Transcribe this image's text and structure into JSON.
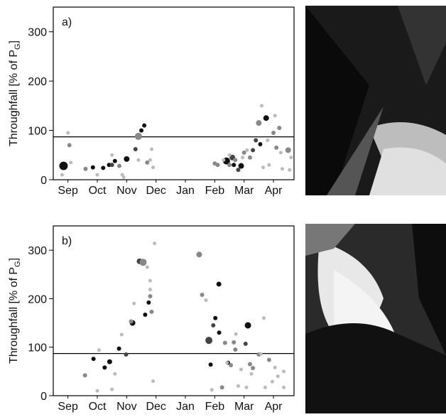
{
  "chart_data": [
    {
      "type": "scatter",
      "panel_label": "a)",
      "ylabel": [
        "Throughfall [% of P",
        "G",
        "]"
      ],
      "xlim": [
        -0.5,
        7.7
      ],
      "xticks": [
        {
          "value": 0,
          "label": "Sep"
        },
        {
          "value": 1,
          "label": "Oct"
        },
        {
          "value": 2,
          "label": "Nov"
        },
        {
          "value": 3,
          "label": "Dec"
        },
        {
          "value": 4,
          "label": "Jan"
        },
        {
          "value": 5,
          "label": "Feb"
        },
        {
          "value": 6,
          "label": "Mar"
        },
        {
          "value": 7,
          "label": "Apr"
        }
      ],
      "ylim": [
        0,
        350
      ],
      "yticks": [
        0,
        100,
        200,
        300
      ],
      "hline": 87,
      "series": [
        {
          "color": "#111111",
          "x": [
            -0.15,
            0.85,
            1.2,
            1.4,
            1.6,
            2.0,
            2.5,
            2.6,
            5.4,
            5.65,
            5.9,
            6.55,
            6.75
          ],
          "values": [
            28,
            25,
            24,
            30,
            38,
            42,
            100,
            110,
            38,
            30,
            28,
            72,
            125
          ],
          "sizes": [
            6,
            3,
            3,
            3,
            3,
            4,
            3,
            3,
            5,
            3,
            4,
            3,
            4
          ]
        },
        {
          "color": "#444444",
          "x": [
            1.5,
            2.3,
            5.6,
            5.8,
            6.3,
            6.4
          ],
          "values": [
            30,
            62,
            45,
            20,
            60,
            80
          ],
          "sizes": [
            3,
            3,
            4,
            3,
            3,
            3
          ]
        },
        {
          "color": "#888888",
          "x": [
            0.05,
            0.6,
            1.75,
            2.4,
            2.7,
            5.0,
            5.1,
            5.5,
            5.7,
            6.0,
            6.2,
            6.5,
            7.0,
            7.1,
            7.2,
            7.5
          ],
          "values": [
            70,
            22,
            28,
            88,
            35,
            33,
            30,
            30,
            40,
            55,
            45,
            115,
            95,
            65,
            105,
            60
          ],
          "sizes": [
            3,
            3,
            3,
            5,
            3,
            3,
            3,
            3,
            3,
            3,
            3,
            4,
            3,
            3,
            3,
            4
          ]
        },
        {
          "color": "#bbbbbb",
          "x": [
            -0.2,
            0.0,
            0.1,
            1.0,
            1.5,
            1.85,
            1.9,
            2.4,
            2.8,
            2.9,
            2.85,
            5.3,
            5.5,
            5.95,
            6.1,
            6.6,
            6.65,
            6.8,
            6.85,
            7.05,
            7.25,
            7.3,
            7.55,
            7.6
          ],
          "values": [
            10,
            95,
            35,
            10,
            50,
            10,
            5,
            40,
            40,
            25,
            62,
            40,
            50,
            45,
            60,
            150,
            25,
            80,
            30,
            130,
            55,
            22,
            20,
            45
          ],
          "sizes": [
            2.5,
            2.5,
            2.5,
            2.5,
            2.5,
            2.5,
            2.5,
            2.5,
            2.5,
            2.5,
            2.5,
            2.5,
            2.5,
            2.5,
            2.5,
            2.5,
            2.5,
            2.5,
            2.5,
            2.5,
            2.5,
            2.5,
            2.5,
            2.5
          ]
        }
      ]
    },
    {
      "type": "scatter",
      "panel_label": "b)",
      "ylabel": [
        "Throughfall [% of P",
        "G",
        "]"
      ],
      "xlim": [
        -0.5,
        7.7
      ],
      "xticks": [
        {
          "value": 0,
          "label": "Sep"
        },
        {
          "value": 1,
          "label": "Oct"
        },
        {
          "value": 2,
          "label": "Nov"
        },
        {
          "value": 3,
          "label": "Dec"
        },
        {
          "value": 4,
          "label": "Jan"
        },
        {
          "value": 5,
          "label": "Feb"
        },
        {
          "value": 6,
          "label": "Mar"
        },
        {
          "value": 7,
          "label": "Apr"
        }
      ],
      "ylim": [
        0,
        350
      ],
      "yticks": [
        0,
        100,
        200,
        300
      ],
      "hline": 87,
      "series": [
        {
          "color": "#111111",
          "x": [
            0.87,
            1.25,
            1.42,
            1.74,
            2.2,
            2.63,
            2.75,
            4.86,
            5.02,
            5.14,
            5.15,
            5.45,
            6.13
          ],
          "values": [
            76,
            58,
            70,
            97,
            150,
            167,
            192,
            64,
            160,
            230,
            130,
            68,
            145
          ],
          "sizes": [
            3,
            3,
            3.5,
            3,
            4,
            3,
            3,
            3,
            3,
            3.5,
            3,
            3,
            4.5
          ]
        },
        {
          "color": "#444444",
          "x": [
            1.98,
            2.44,
            4.8,
            4.95,
            6.05
          ],
          "values": [
            85,
            277,
            114,
            145,
            107
          ],
          "sizes": [
            3,
            4,
            5,
            3,
            3
          ]
        },
        {
          "color": "#888888",
          "x": [
            0.58,
            2.15,
            2.56,
            2.8,
            2.85,
            4.47,
            4.57,
            5.25,
            5.35,
            5.55,
            5.65,
            5.7,
            6.2,
            6.3,
            6.5,
            6.85
          ],
          "values": [
            42,
            153,
            275,
            205,
            173,
            291,
            208,
            17,
            109,
            63,
            110,
            95,
            65,
            57,
            85,
            74
          ],
          "sizes": [
            3,
            3,
            5,
            3,
            3,
            4,
            3,
            3,
            3,
            3,
            3,
            3,
            3,
            3,
            3,
            3
          ]
        },
        {
          "color": "#bbbbbb",
          "x": [
            1.0,
            1.06,
            1.5,
            1.6,
            1.83,
            2.25,
            2.7,
            2.8,
            2.8,
            2.9,
            2.95,
            4.7,
            4.9,
            5.42,
            5.72,
            5.8,
            5.9,
            6.08,
            6.25,
            6.57,
            6.67,
            6.72,
            6.96,
            7.05,
            7.15,
            7.35,
            7.35
          ],
          "values": [
            10,
            94,
            13,
            45,
            126,
            190,
            265,
            237,
            219,
            30,
            314,
            197,
            12,
            68,
            127,
            20,
            54,
            17,
            45,
            86,
            160,
            17,
            29,
            58,
            40,
            50,
            17
          ],
          "sizes": [
            2.5,
            2.5,
            2.5,
            2.5,
            2.5,
            2.5,
            2.5,
            2.5,
            2.5,
            2.5,
            2.5,
            2.5,
            2.5,
            2.5,
            2.5,
            2.5,
            2.5,
            2.5,
            2.5,
            2.5,
            2.5,
            2.5,
            2.5,
            2.5,
            2.5,
            2.5,
            2.5
          ]
        }
      ]
    }
  ]
}
